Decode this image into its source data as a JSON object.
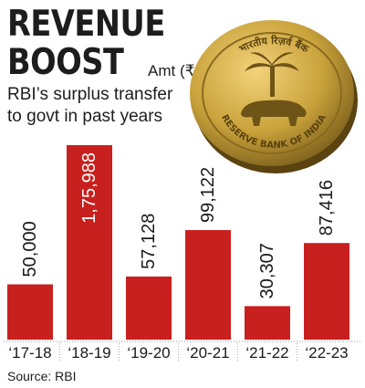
{
  "header": {
    "title": "REVENUE\nBOOST",
    "unit": "Amt (₹ cr)",
    "subtitle": "RBI’s surplus transfer\nto govt in past years"
  },
  "coin": {
    "top_text": "भारतीय रिज़र्व बैंक",
    "bottom_text": "RESERVE BANK OF INDIA"
  },
  "footer": {
    "source": "Source: RBI"
  },
  "colors": {
    "bar": "#c8201e",
    "coin": "#c9a23b"
  },
  "chart_data": {
    "type": "bar",
    "title": "RBI’s surplus transfer to govt in past years",
    "ylabel": "Amt (₹ cr)",
    "categories": [
      "‘17-18",
      "‘18-19",
      "‘19-20",
      "‘20-21",
      "‘21-22",
      "‘22-23"
    ],
    "values": [
      50000,
      175988,
      57128,
      99122,
      30307,
      87416
    ],
    "value_labels": [
      "50,000",
      "1,75,988",
      "57,128",
      "99,122",
      "30,307",
      "87,416"
    ],
    "ylim": [
      0,
      175988
    ],
    "grid": false
  }
}
